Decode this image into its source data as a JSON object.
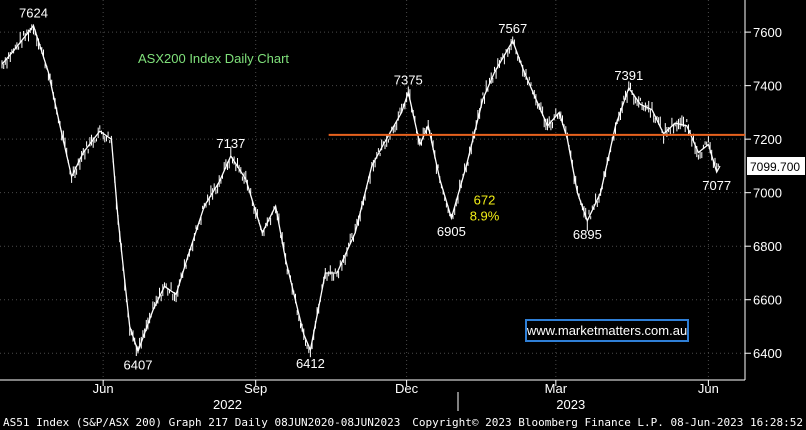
{
  "chart_data": {
    "type": "line",
    "title": "ASX200 Index Daily Chart",
    "y_axis": {
      "range": [
        6300,
        7720
      ],
      "ticks": [
        6400,
        6600,
        6800,
        7000,
        7200,
        7400,
        7600
      ],
      "side": "right"
    },
    "x_axis": {
      "tick_labels": [
        "Jun",
        "Sep",
        "Dec",
        "Mar",
        "Jun"
      ],
      "year_labels": [
        "2022",
        "2023"
      ]
    },
    "series": [
      {
        "approximate_path": [
          [
            "2022-04-01",
            7480
          ],
          [
            "2022-04-08",
            7530
          ],
          [
            "2022-04-20",
            7624
          ],
          [
            "2022-04-29",
            7450
          ],
          [
            "2022-05-06",
            7250
          ],
          [
            "2022-05-13",
            7060
          ],
          [
            "2022-05-20",
            7150
          ],
          [
            "2022-05-30",
            7230
          ],
          [
            "2022-06-06",
            7200
          ],
          [
            "2022-06-10",
            6900
          ],
          [
            "2022-06-17",
            6500
          ],
          [
            "2022-06-22",
            6407
          ],
          [
            "2022-07-01",
            6560
          ],
          [
            "2022-07-08",
            6650
          ],
          [
            "2022-07-15",
            6620
          ],
          [
            "2022-07-22",
            6760
          ],
          [
            "2022-08-01",
            6950
          ],
          [
            "2022-08-10",
            7040
          ],
          [
            "2022-08-17",
            7137
          ],
          [
            "2022-08-26",
            7050
          ],
          [
            "2022-09-05",
            6850
          ],
          [
            "2022-09-13",
            6950
          ],
          [
            "2022-09-19",
            6750
          ],
          [
            "2022-09-30",
            6470
          ],
          [
            "2022-10-04",
            6412
          ],
          [
            "2022-10-13",
            6700
          ],
          [
            "2022-10-20",
            6700
          ],
          [
            "2022-10-31",
            6850
          ],
          [
            "2022-11-10",
            7100
          ],
          [
            "2022-11-17",
            7180
          ],
          [
            "2022-11-28",
            7300
          ],
          [
            "2022-12-02",
            7375
          ],
          [
            "2022-12-09",
            7180
          ],
          [
            "2022-12-14",
            7250
          ],
          [
            "2022-12-21",
            7050
          ],
          [
            "2022-12-28",
            6905
          ],
          [
            "2023-01-06",
            7100
          ],
          [
            "2023-01-16",
            7350
          ],
          [
            "2023-01-23",
            7450
          ],
          [
            "2023-02-03",
            7567
          ],
          [
            "2023-02-10",
            7450
          ],
          [
            "2023-02-17",
            7350
          ],
          [
            "2023-02-24",
            7250
          ],
          [
            "2023-03-03",
            7300
          ],
          [
            "2023-03-08",
            7200
          ],
          [
            "2023-03-14",
            7000
          ],
          [
            "2023-03-20",
            6895
          ],
          [
            "2023-03-28",
            7000
          ],
          [
            "2023-04-06",
            7250
          ],
          [
            "2023-04-14",
            7391
          ],
          [
            "2023-04-21",
            7330
          ],
          [
            "2023-04-28",
            7310
          ],
          [
            "2023-05-05",
            7220
          ],
          [
            "2023-05-12",
            7260
          ],
          [
            "2023-05-19",
            7250
          ],
          [
            "2023-05-26",
            7150
          ],
          [
            "2023-06-01",
            7180
          ],
          [
            "2023-06-06",
            7077
          ],
          [
            "2023-06-08",
            7099.7
          ]
        ]
      }
    ],
    "horizontal_line": {
      "value": 7216,
      "color": "#e8621e"
    },
    "last_value_label": "7099.700",
    "annotations": [
      {
        "text": "7624",
        "x": "2022-04-20",
        "y": 7624,
        "pos": "above",
        "color": "#ffffff"
      },
      {
        "text": "6407",
        "x": "2022-06-22",
        "y": 6407,
        "pos": "below",
        "color": "#ffffff"
      },
      {
        "text": "7137",
        "x": "2022-08-17",
        "y": 7137,
        "pos": "above",
        "color": "#ffffff"
      },
      {
        "text": "6412",
        "x": "2022-10-04",
        "y": 6412,
        "pos": "below",
        "color": "#ffffff"
      },
      {
        "text": "7375",
        "x": "2022-12-02",
        "y": 7375,
        "pos": "above",
        "color": "#ffffff"
      },
      {
        "text": "6905",
        "x": "2022-12-28",
        "y": 6905,
        "pos": "below",
        "color": "#ffffff"
      },
      {
        "text": "7567",
        "x": "2023-02-03",
        "y": 7567,
        "pos": "above",
        "color": "#ffffff"
      },
      {
        "text": "6895",
        "x": "2023-03-20",
        "y": 6895,
        "pos": "below",
        "color": "#ffffff"
      },
      {
        "text": "7391",
        "x": "2023-04-14",
        "y": 7391,
        "pos": "above",
        "color": "#ffffff"
      },
      {
        "text": "7077",
        "x": "2023-06-06",
        "y": 7077,
        "pos": "below",
        "color": "#ffffff"
      },
      {
        "text": "672",
        "x": "2023-01-17",
        "y": 6975,
        "pos": "center",
        "color": "#f2ee16"
      },
      {
        "text": "8.9%",
        "x": "2023-01-17",
        "y": 6915,
        "pos": "center",
        "color": "#f2ee16"
      }
    ],
    "grid": true,
    "colors": {
      "background": "#000000",
      "line": "#ffffff",
      "grid": "#4a4a4a",
      "title": "#7fe07a",
      "watermark_border": "#2f7fd6"
    }
  },
  "watermark": "www.marketmatters.com.au",
  "footer": {
    "left": "AS51 Index (S&P/ASX 200) Graph 217  Daily 08JUN2020-08JUN2023",
    "right": "Copyright© 2023 Bloomberg Finance L.P.   08-Jun-2023 16:28:52"
  }
}
